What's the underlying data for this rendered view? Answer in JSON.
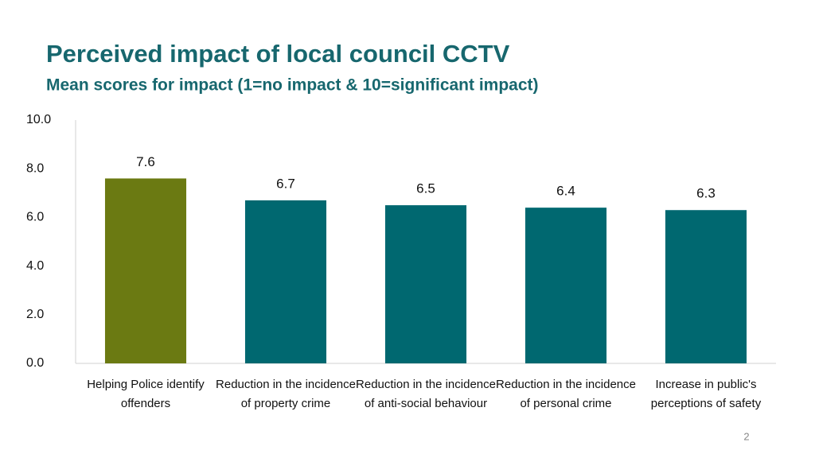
{
  "chart_data": {
    "type": "bar",
    "title": "Perceived impact of local council CCTV",
    "subtitle": "Mean scores for impact (1=no impact & 10=significant impact)",
    "categories": [
      "Helping Police identify offenders",
      "Reduction in the incidence of property crime",
      "Reduction in the incidence of anti-social behaviour",
      "Reduction in the incidence of personal crime",
      "Increase in public's perceptions of safety"
    ],
    "values": [
      7.6,
      6.7,
      6.5,
      6.4,
      6.3
    ],
    "colors": [
      "#6b7a12",
      "#006870",
      "#006870",
      "#006870",
      "#006870"
    ],
    "ylim": [
      0,
      10
    ],
    "yticks": [
      {
        "value": 0,
        "label": "0.0"
      },
      {
        "value": 2,
        "label": "2.0"
      },
      {
        "value": 4,
        "label": "4.0"
      },
      {
        "value": 6,
        "label": "6.0"
      },
      {
        "value": 8,
        "label": "8.0"
      },
      {
        "value": 10,
        "label": "10.0"
      }
    ],
    "grid": false,
    "page_number": "2"
  }
}
